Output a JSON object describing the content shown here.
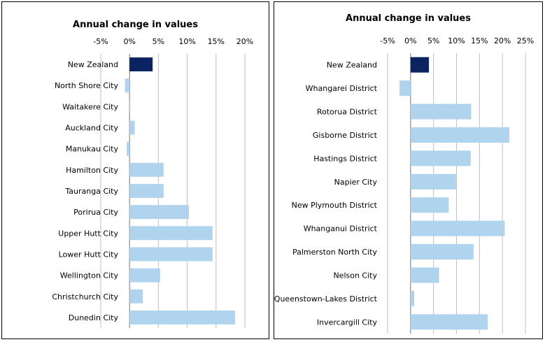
{
  "colors": {
    "highlight": "#0c2361",
    "bar": "#b0d4ee",
    "grid": "#bfbfbf",
    "axis": "#808080"
  },
  "chart_data": [
    {
      "type": "bar",
      "orientation": "horizontal",
      "title": "Annual change in values",
      "xlim": [
        -5,
        20
      ],
      "ticks": [
        "-5%",
        "0%",
        "5%",
        "10%",
        "15%",
        "20%"
      ],
      "tick_values": [
        -5,
        0,
        5,
        10,
        15,
        20
      ],
      "grid": true,
      "categories": [
        "New Zealand",
        "North Shore City",
        "Waitakere City",
        "Auckland City",
        "Manukau City",
        "Hamilton City",
        "Tauranga City",
        "Porirua City",
        "Upper Hutt City",
        "Lower Hutt City",
        "Wellington City",
        "Christchurch City",
        "Dunedin City"
      ],
      "values": [
        4.0,
        -0.8,
        0.0,
        0.9,
        -0.5,
        5.9,
        5.9,
        10.3,
        14.4,
        14.4,
        5.3,
        2.3,
        18.3
      ],
      "highlight_index": 0
    },
    {
      "type": "bar",
      "orientation": "horizontal",
      "title": "Annual change in values",
      "xlim": [
        -5,
        25
      ],
      "ticks": [
        "-5%",
        "0%",
        "5%",
        "10%",
        "15%",
        "20%",
        "25%"
      ],
      "tick_values": [
        -5,
        0,
        5,
        10,
        15,
        20,
        25
      ],
      "grid": true,
      "categories": [
        "New Zealand",
        "Whangarei District",
        "Rotorua District",
        "Gisborne District",
        "Hastings District",
        "Napier City",
        "New Plymouth District",
        "Whanganui District",
        "Palmerston North City",
        "Nelson City",
        "Queenstown-Lakes District",
        "Invercargill City"
      ],
      "values": [
        4.0,
        -2.4,
        13.2,
        21.5,
        13.1,
        9.9,
        8.3,
        20.5,
        13.7,
        6.2,
        0.8,
        16.8
      ],
      "highlight_index": 0
    }
  ]
}
